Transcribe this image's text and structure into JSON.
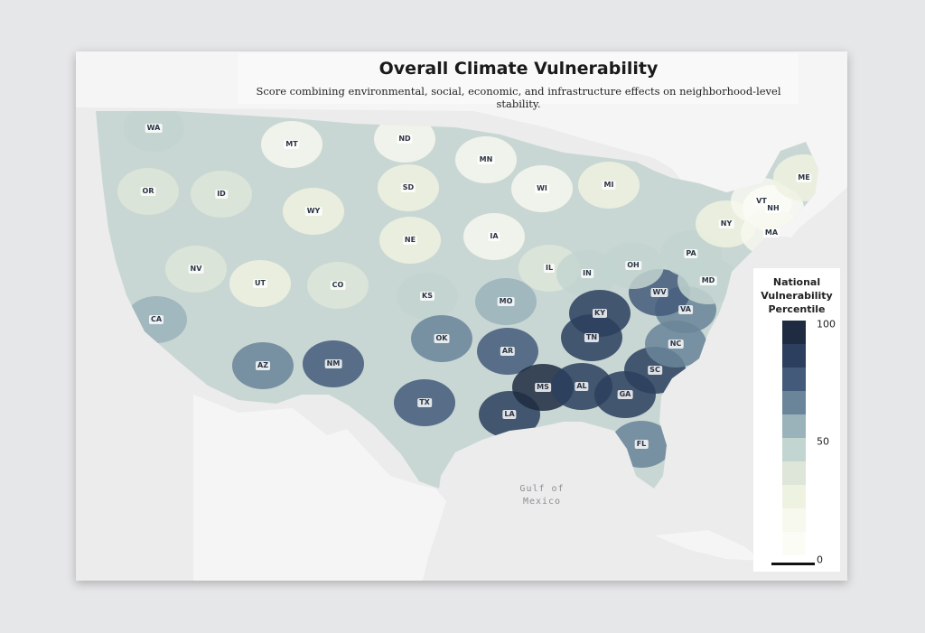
{
  "map": {
    "title": "Overall Climate Vulnerability",
    "subtitle": "Score combining environmental, social, economic, and infrastructure effects on neighborhood-level stability.",
    "water_label_line1": "Gulf of",
    "water_label_line2": "Mexico",
    "states": [
      {
        "code": "WA",
        "value": 45
      },
      {
        "code": "OR",
        "value": 40
      },
      {
        "code": "CA",
        "value": 55
      },
      {
        "code": "ID",
        "value": 35
      },
      {
        "code": "NV",
        "value": 40
      },
      {
        "code": "MT",
        "value": 20
      },
      {
        "code": "WY",
        "value": 25
      },
      {
        "code": "UT",
        "value": 30
      },
      {
        "code": "CO",
        "value": 35
      },
      {
        "code": "AZ",
        "value": 70
      },
      {
        "code": "NM",
        "value": 80
      },
      {
        "code": "ND",
        "value": 15
      },
      {
        "code": "SD",
        "value": 30
      },
      {
        "code": "NE",
        "value": 25
      },
      {
        "code": "KS",
        "value": 45
      },
      {
        "code": "OK",
        "value": 65
      },
      {
        "code": "TX",
        "value": 80
      },
      {
        "code": "MN",
        "value": 15
      },
      {
        "code": "IA",
        "value": 20
      },
      {
        "code": "MO",
        "value": 60
      },
      {
        "code": "AR",
        "value": 80
      },
      {
        "code": "LA",
        "value": 90
      },
      {
        "code": "WI",
        "value": 15
      },
      {
        "code": "IL",
        "value": 35
      },
      {
        "code": "MI",
        "value": 25
      },
      {
        "code": "IN",
        "value": 45
      },
      {
        "code": "KY",
        "value": 85
      },
      {
        "code": "TN",
        "value": 85
      },
      {
        "code": "MS",
        "value": 95
      },
      {
        "code": "AL",
        "value": 90
      },
      {
        "code": "GA",
        "value": 85
      },
      {
        "code": "FL",
        "value": 70
      },
      {
        "code": "SC",
        "value": 85
      },
      {
        "code": "NC",
        "value": 70
      },
      {
        "code": "VA",
        "value": 65
      },
      {
        "code": "WV",
        "value": 75
      },
      {
        "code": "OH",
        "value": 50
      },
      {
        "code": "PA",
        "value": 50
      },
      {
        "code": "NY",
        "value": 25
      },
      {
        "code": "VT",
        "value": 15
      },
      {
        "code": "NH",
        "value": 10
      },
      {
        "code": "ME",
        "value": 25
      },
      {
        "code": "MA",
        "value": 20
      },
      {
        "code": "MD",
        "value": 45
      }
    ]
  },
  "legend": {
    "title_lines": [
      "National",
      "Vulnerability",
      "Percentile"
    ],
    "tick_max": "100",
    "tick_mid": "50",
    "tick_min": "0",
    "colors": [
      "#1e2b40",
      "#2c3f5e",
      "#435a7a",
      "#6a8599",
      "#9ab3bb",
      "#c3d5d0",
      "#dde6d8",
      "#eef2e1",
      "#f7f8ee",
      "#fcfcf7"
    ]
  },
  "colors": {
    "land_other": "#d9d9d9",
    "water": "#ececec",
    "state_border": "#ffffff"
  }
}
